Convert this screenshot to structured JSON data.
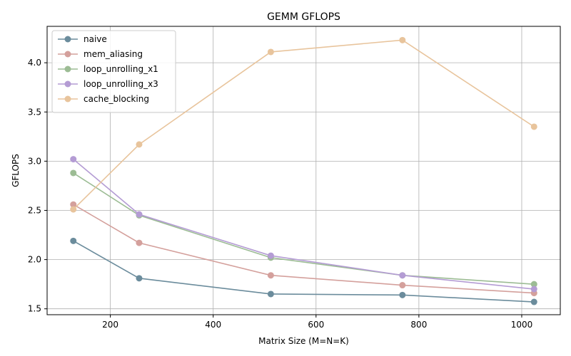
{
  "chart_data": {
    "type": "line",
    "title": "GEMM GFLOPS",
    "xlabel": "Matrix Size (M=N=K)",
    "ylabel": "GFLOPS",
    "x": [
      128,
      256,
      512,
      768,
      1024
    ],
    "xlim": [
      77,
      1075
    ],
    "ylim": [
      1.44,
      4.37
    ],
    "xticks": [
      200,
      400,
      600,
      800,
      1000
    ],
    "yticks": [
      1.5,
      2.0,
      2.5,
      3.0,
      3.5,
      4.0
    ],
    "xtick_labels": [
      "200",
      "400",
      "600",
      "800",
      "1000"
    ],
    "ytick_labels": [
      "1.5",
      "2.0",
      "2.5",
      "3.0",
      "3.5",
      "4.0"
    ],
    "grid": true,
    "legend_position": "upper-left",
    "series": [
      {
        "name": "naive",
        "color": "#6b8c9c",
        "values": [
          2.19,
          1.81,
          1.65,
          1.64,
          1.57
        ]
      },
      {
        "name": "mem_aliasing",
        "color": "#d4a09c",
        "values": [
          2.56,
          2.17,
          1.84,
          1.74,
          1.66
        ]
      },
      {
        "name": "loop_unrolling_x1",
        "color": "#9cbc94",
        "values": [
          2.88,
          2.45,
          2.02,
          1.84,
          1.75
        ]
      },
      {
        "name": "loop_unrolling_x3",
        "color": "#b49cd4",
        "values": [
          3.02,
          2.46,
          2.04,
          1.84,
          1.7
        ]
      },
      {
        "name": "cache_blocking",
        "color": "#e8c49c",
        "values": [
          2.51,
          3.17,
          4.11,
          4.23,
          3.35
        ]
      }
    ]
  }
}
